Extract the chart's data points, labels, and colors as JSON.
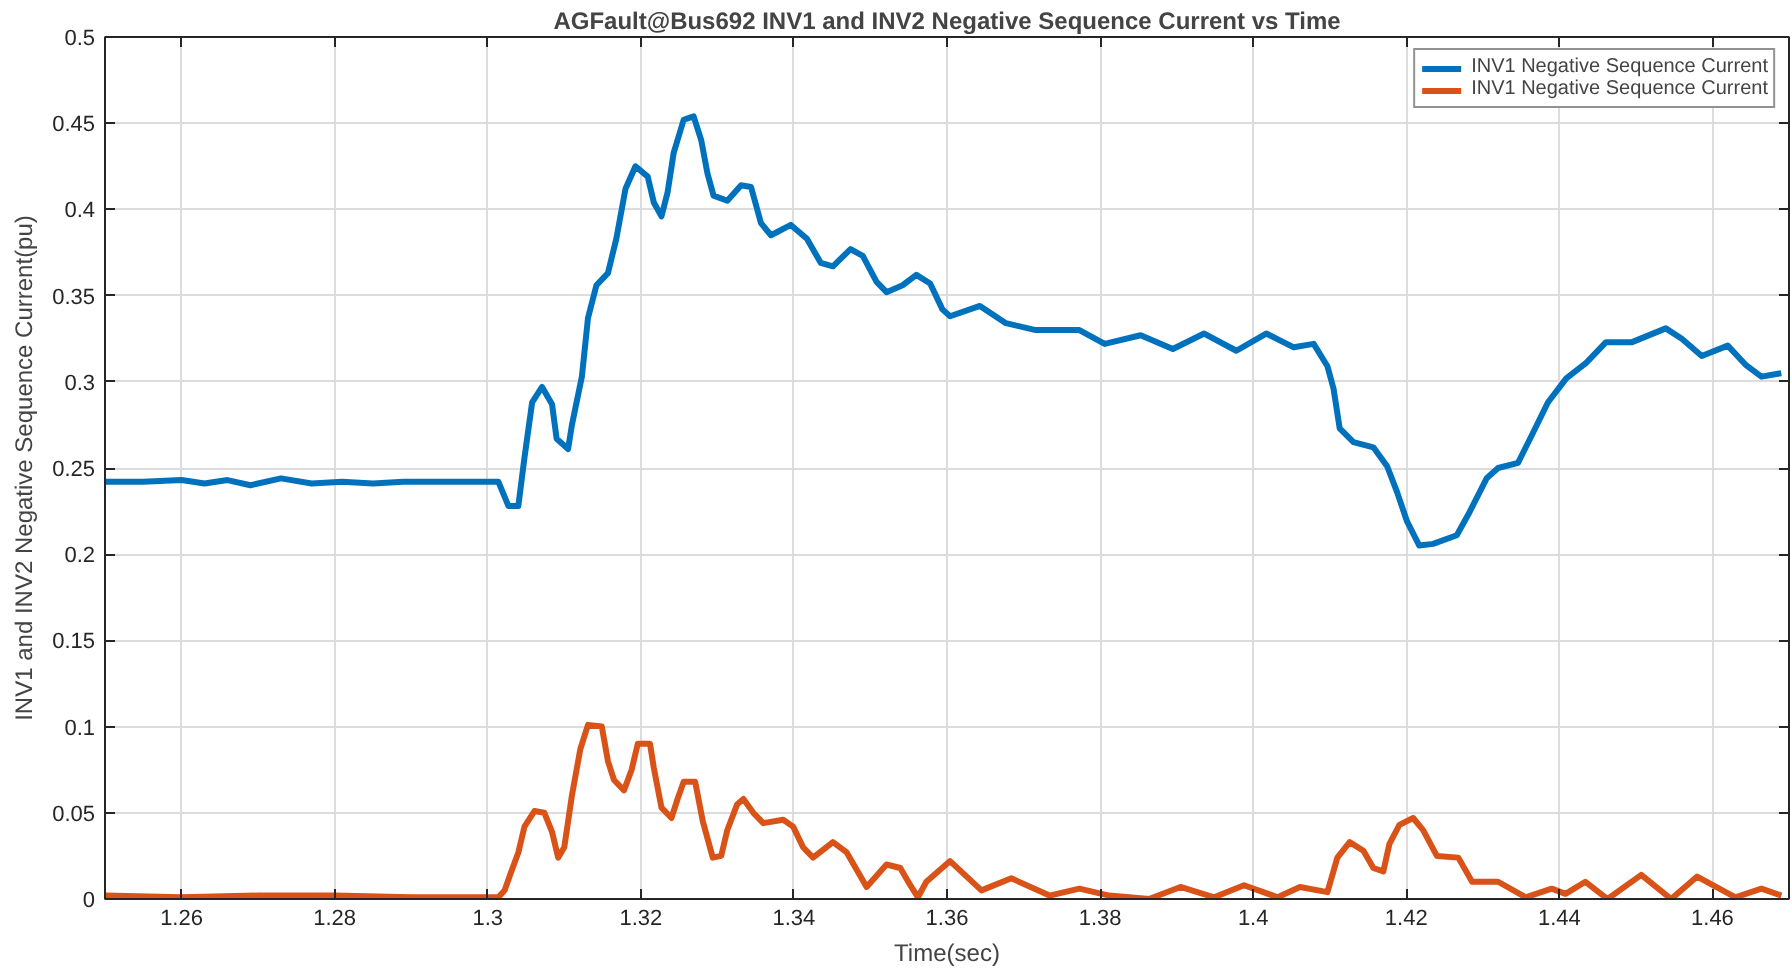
{
  "chart_data": {
    "type": "line",
    "title": "AGFault@Bus692 INV1 and INV2 Negative Sequence Current vs Time",
    "xlabel": "Time(sec)",
    "ylabel": "INV1 and INV2 Negative Sequence Current(pu)",
    "xlim": [
      1.25,
      1.47
    ],
    "xticks": [
      1.26,
      1.28,
      1.3,
      1.32,
      1.34,
      1.36,
      1.38,
      1.4,
      1.42,
      1.44,
      1.46
    ],
    "ylim": [
      0,
      0.5
    ],
    "yticks": [
      0,
      0.05,
      0.1,
      0.15,
      0.2,
      0.25,
      0.3,
      0.35,
      0.4,
      0.45,
      0.5
    ],
    "grid": true,
    "legend": "top right",
    "marker": "none",
    "line_style": "solid",
    "series": [
      {
        "name": "INV1 Negative Sequence Current",
        "color": "#0072bd",
        "x": [
          1.25,
          1.255,
          1.26,
          1.263,
          1.266,
          1.269,
          1.273,
          1.277,
          1.281,
          1.285,
          1.289,
          1.294,
          1.3,
          1.3014,
          1.3027,
          1.304,
          1.3048,
          1.3058,
          1.3071,
          1.3084,
          1.309,
          1.3105,
          1.311,
          1.3123,
          1.3131,
          1.3142,
          1.3157,
          1.3168,
          1.318,
          1.3193,
          1.3209,
          1.3217,
          1.3227,
          1.3235,
          1.3243,
          1.3256,
          1.3269,
          1.3279,
          1.3287,
          1.3295,
          1.3313,
          1.3331,
          1.3344,
          1.3357,
          1.337,
          1.3396,
          1.3417,
          1.3435,
          1.3451,
          1.3474,
          1.349,
          1.3508,
          1.3521,
          1.3542,
          1.356,
          1.3578,
          1.3594,
          1.3604,
          1.3643,
          1.3677,
          1.3716,
          1.3773,
          1.3806,
          1.3853,
          1.3895,
          1.3936,
          1.3978,
          1.4017,
          1.4053,
          1.4079,
          1.4097,
          1.4105,
          1.4113,
          1.4131,
          1.4157,
          1.4175,
          1.4188,
          1.4201,
          1.4217,
          1.4235,
          1.4266,
          1.4281,
          1.4305,
          1.432,
          1.4346,
          1.4364,
          1.4385,
          1.4409,
          1.4435,
          1.4461,
          1.4495,
          1.4539,
          1.456,
          1.4586,
          1.462,
          1.4643,
          1.4664,
          1.469
        ],
        "values": [
          0.242,
          0.242,
          0.243,
          0.241,
          0.243,
          0.24,
          0.244,
          0.241,
          0.242,
          0.241,
          0.242,
          0.242,
          0.242,
          0.242,
          0.228,
          0.228,
          0.256,
          0.288,
          0.297,
          0.287,
          0.267,
          0.261,
          0.275,
          0.303,
          0.337,
          0.356,
          0.363,
          0.383,
          0.412,
          0.425,
          0.419,
          0.404,
          0.396,
          0.41,
          0.433,
          0.452,
          0.454,
          0.44,
          0.421,
          0.408,
          0.405,
          0.414,
          0.413,
          0.392,
          0.385,
          0.391,
          0.383,
          0.369,
          0.367,
          0.377,
          0.373,
          0.358,
          0.352,
          0.356,
          0.362,
          0.357,
          0.342,
          0.338,
          0.344,
          0.334,
          0.33,
          0.33,
          0.322,
          0.327,
          0.319,
          0.328,
          0.318,
          0.328,
          0.32,
          0.322,
          0.309,
          0.296,
          0.273,
          0.265,
          0.262,
          0.251,
          0.236,
          0.219,
          0.205,
          0.206,
          0.211,
          0.223,
          0.244,
          0.25,
          0.253,
          0.269,
          0.288,
          0.302,
          0.311,
          0.323,
          0.323,
          0.331,
          0.325,
          0.315,
          0.321,
          0.31,
          0.303,
          0.305
        ]
      },
      {
        "name": "INV1 Negative Sequence Current",
        "color": "#d95319",
        "x": [
          1.25,
          1.26,
          1.27,
          1.28,
          1.29,
          1.3014,
          1.3022,
          1.303,
          1.304,
          1.3048,
          1.3061,
          1.3074,
          1.3084,
          1.3092,
          1.31,
          1.311,
          1.3121,
          1.3131,
          1.3149,
          1.3157,
          1.3165,
          1.3178,
          1.3188,
          1.3196,
          1.3212,
          1.3217,
          1.3227,
          1.324,
          1.3248,
          1.3256,
          1.3271,
          1.3281,
          1.3294,
          1.3305,
          1.3313,
          1.3326,
          1.3334,
          1.3347,
          1.336,
          1.3386,
          1.3399,
          1.3412,
          1.3425,
          1.3451,
          1.3469,
          1.3482,
          1.3495,
          1.3521,
          1.3539,
          1.3552,
          1.3562,
          1.3573,
          1.3604,
          1.3645,
          1.3684,
          1.3734,
          1.3773,
          1.3812,
          1.3864,
          1.3905,
          1.3949,
          1.3988,
          1.4032,
          1.4061,
          1.4097,
          1.411,
          1.4126,
          1.4144,
          1.4157,
          1.417,
          1.4178,
          1.4191,
          1.4209,
          1.4222,
          1.424,
          1.4268,
          1.4286,
          1.432,
          1.4356,
          1.439,
          1.4408,
          1.4434,
          1.4463,
          1.4507,
          1.4546,
          1.458,
          1.463,
          1.4664,
          1.469
        ],
        "values": [
          0.002,
          0.001,
          0.002,
          0.002,
          0.001,
          0.001,
          0.005,
          0.015,
          0.027,
          0.042,
          0.051,
          0.05,
          0.039,
          0.024,
          0.03,
          0.06,
          0.087,
          0.101,
          0.1,
          0.08,
          0.069,
          0.063,
          0.075,
          0.09,
          0.09,
          0.076,
          0.053,
          0.047,
          0.058,
          0.068,
          0.068,
          0.045,
          0.024,
          0.025,
          0.04,
          0.055,
          0.058,
          0.05,
          0.044,
          0.046,
          0.042,
          0.03,
          0.024,
          0.033,
          0.027,
          0.017,
          0.007,
          0.02,
          0.018,
          0.008,
          0.001,
          0.01,
          0.022,
          0.005,
          0.012,
          0.002,
          0.006,
          0.002,
          0.0,
          0.007,
          0.001,
          0.008,
          0.001,
          0.007,
          0.004,
          0.024,
          0.033,
          0.028,
          0.018,
          0.016,
          0.032,
          0.043,
          0.047,
          0.04,
          0.025,
          0.024,
          0.01,
          0.01,
          0.001,
          0.006,
          0.003,
          0.01,
          0.0,
          0.014,
          0.0,
          0.013,
          0.001,
          0.006,
          0.002
        ]
      }
    ]
  }
}
